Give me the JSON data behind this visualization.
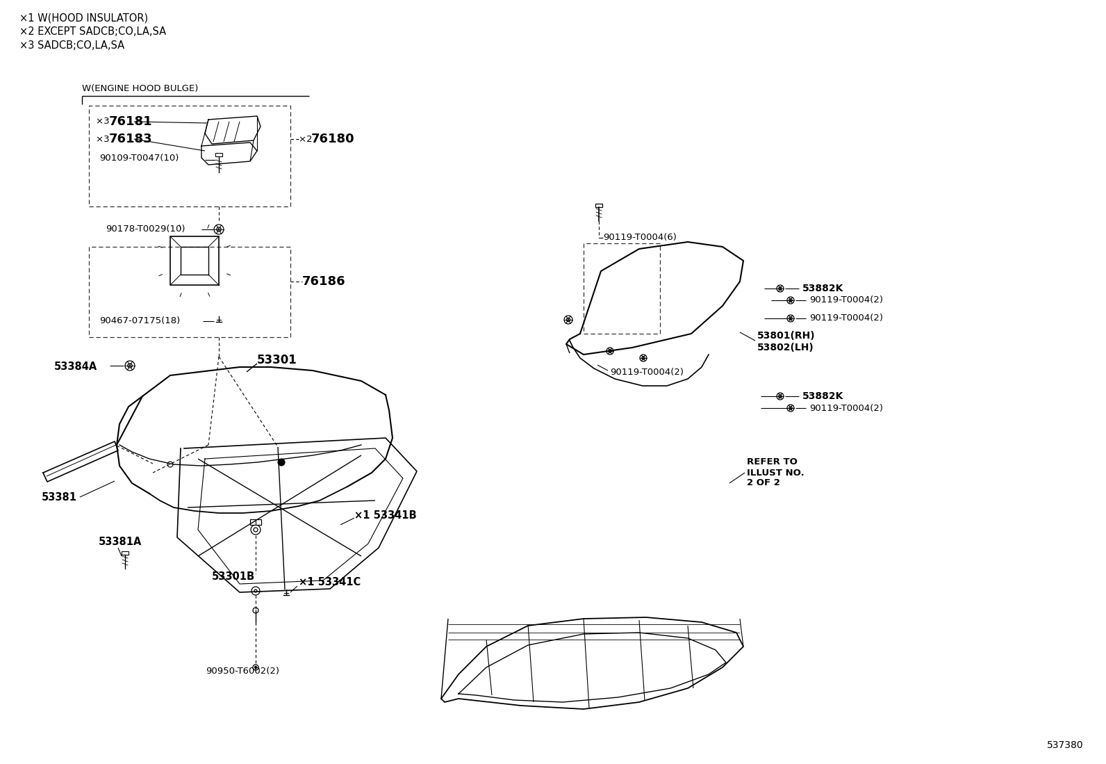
{
  "title": "537380",
  "bg_color": "#ffffff",
  "legend_lines": [
    "×1 W(HOOD INSULATOR)",
    "×2 EXCEPT SADCB;CO,LA,SA",
    "×3 SADCB;CO,LA,SA"
  ],
  "figsize": [
    15.92,
    10.99
  ],
  "dpi": 100,
  "text_color": "#000000",
  "line_color": "#000000"
}
